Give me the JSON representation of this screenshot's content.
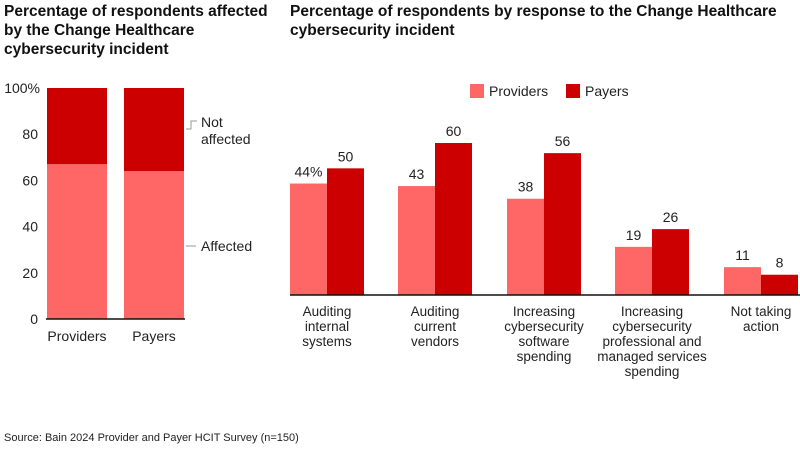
{
  "colors": {
    "providers": "#ff6666",
    "payers": "#cc0000",
    "affected": "#ff6666",
    "not_affected": "#cc0000"
  },
  "chart_data": [
    {
      "type": "bar",
      "stacked": true,
      "title": "Percentage of respondents affected by the Change Healthcare cybersecurity incident",
      "categories": [
        "Providers",
        "Payers"
      ],
      "series": [
        {
          "name": "Affected",
          "values": [
            67,
            64
          ]
        },
        {
          "name": "Not affected",
          "values": [
            33,
            36
          ]
        }
      ],
      "ylim": [
        0,
        100
      ],
      "yticks": [
        "0",
        "20",
        "40",
        "60",
        "80",
        "100%"
      ],
      "legend": "right, inline labels"
    },
    {
      "type": "bar",
      "title": "Percentage of respondents by response to the Change Healthcare cybersecurity incident",
      "categories": [
        "Auditing internal systems",
        "Auditing current vendors",
        "Increasing cybersecurity software spending",
        "Increasing cybersecurity professional and managed services spending",
        "Not taking action"
      ],
      "category_lines": [
        [
          "Auditing",
          "internal",
          "systems"
        ],
        [
          "Auditing",
          "current",
          "vendors"
        ],
        [
          "Increasing",
          "cybersecurity",
          "software",
          "spending"
        ],
        [
          "Increasing",
          "cybersecurity",
          "professional and",
          "managed services",
          "spending"
        ],
        [
          "Not taking",
          "action"
        ]
      ],
      "series": [
        {
          "name": "Providers",
          "values": [
            44,
            43,
            38,
            19,
            11
          ],
          "labels": [
            "44%",
            "43",
            "38",
            "19",
            "11"
          ]
        },
        {
          "name": "Payers",
          "values": [
            50,
            60,
            56,
            26,
            8
          ],
          "labels": [
            "50",
            "60",
            "56",
            "26",
            "8"
          ]
        }
      ],
      "ylim": [
        0,
        60
      ],
      "legend": "top-right"
    }
  ],
  "source": "Source: Bain 2024 Provider and Payer HCIT Survey (n=150)"
}
